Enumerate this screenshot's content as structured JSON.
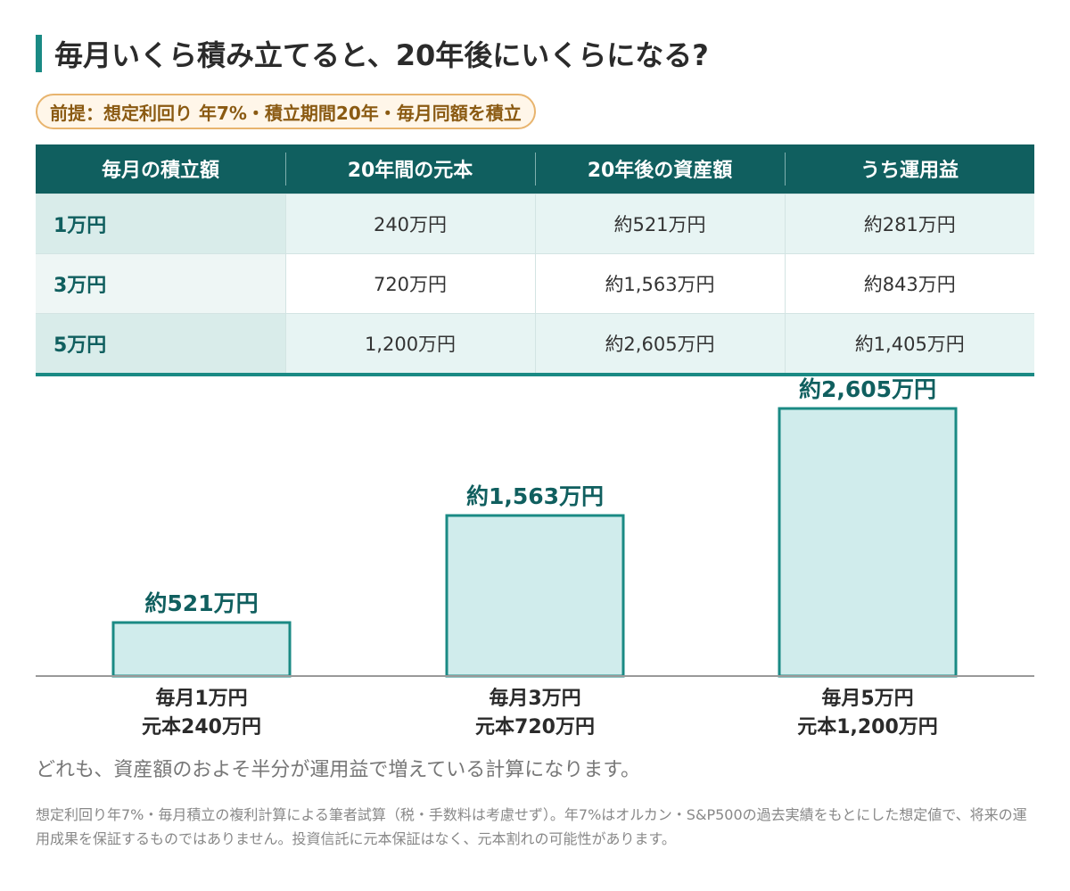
{
  "title": "毎月いくら積み立てると、20年後にいくらになる?",
  "premise": "前提：想定利回り 年7%・積立期間20年・毎月同額を積立",
  "table": {
    "headers": [
      "毎月の積立額",
      "20年間の元本",
      "20年後の資産額",
      "うち運用益"
    ],
    "rows": [
      [
        "1万円",
        "240万円",
        "約521万円",
        "約281万円"
      ],
      [
        "3万円",
        "720万円",
        "約1,563万円",
        "約843万円"
      ],
      [
        "5万円",
        "1,200万円",
        "約2,605万円",
        "約1,405万円"
      ]
    ]
  },
  "chart_data": {
    "type": "bar",
    "categories": [
      [
        "毎月1万円",
        "元本240万円"
      ],
      [
        "毎月3万円",
        "元本720万円"
      ],
      [
        "毎月5万円",
        "元本1,200万円"
      ]
    ],
    "values": [
      521,
      1563,
      2605
    ],
    "data_labels": [
      "約521万円",
      "約1,563万円",
      "約2,605万円"
    ],
    "ylim": [
      0,
      2605
    ],
    "grid": false,
    "colors": {
      "bar_fill": "#d0ecec",
      "bar_stroke": "#1a8a84",
      "label": "#105f5f",
      "axis": "#999999"
    }
  },
  "note": "どれも、資産額のおよそ半分が運用益で増えている計算になります。",
  "footnote": "想定利回り年7%・毎月積立の複利計算による筆者試算（税・手数料は考慮せず）。年7%はオルカン・S&P500の過去実績をもとにした想定値で、将来の運用成果を保証するものではありません。投資信託に元本保証はなく、元本割れの可能性があります。"
}
